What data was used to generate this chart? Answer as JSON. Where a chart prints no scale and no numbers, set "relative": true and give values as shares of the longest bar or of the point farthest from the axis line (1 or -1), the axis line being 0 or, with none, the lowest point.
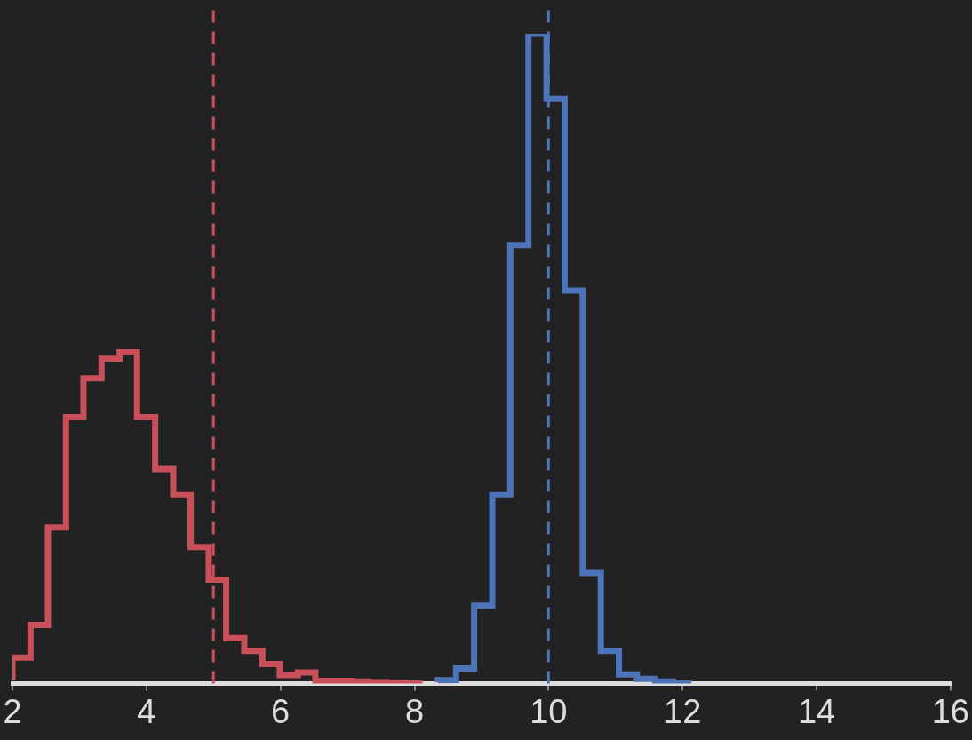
{
  "chart_data": {
    "type": "step",
    "relative": true,
    "xlim": [
      2,
      16
    ],
    "xticks": [
      2,
      4,
      6,
      8,
      10,
      12,
      14,
      16
    ],
    "grid": false,
    "legend": false,
    "marker": "none",
    "series": [
      {
        "color": "#c9505a",
        "x": [
          2.0,
          2.27,
          2.53,
          2.8,
          3.06,
          3.33,
          3.6,
          3.86,
          4.13,
          4.4,
          4.66,
          4.93,
          5.19,
          5.46,
          5.73,
          5.99,
          6.26,
          6.52,
          6.79,
          7.06,
          7.32,
          7.59,
          7.86,
          8.12
        ],
        "values": [
          0.005,
          0.04,
          0.09,
          0.24,
          0.41,
          0.47,
          0.5,
          0.51,
          0.41,
          0.33,
          0.29,
          0.21,
          0.16,
          0.07,
          0.05,
          0.03,
          0.013,
          0.017,
          0.004,
          0.004,
          0.003,
          0.002,
          0.001,
          0
        ]
      },
      {
        "color": "#4d74b8",
        "x": [
          8.35,
          8.62,
          8.89,
          9.16,
          9.43,
          9.7,
          9.97,
          10.24,
          10.51,
          10.78,
          11.05,
          11.32,
          11.59,
          11.86,
          12.13
        ],
        "values": [
          0.002,
          0.005,
          0.023,
          0.12,
          0.29,
          0.675,
          1.0,
          0.9,
          0.605,
          0.17,
          0.05,
          0.014,
          0.007,
          0.003,
          0
        ]
      }
    ],
    "ref_lines": [
      {
        "axis": "x",
        "value": 5,
        "color": "#c9505a",
        "line_style": "dashed"
      },
      {
        "axis": "x",
        "value": 10,
        "color": "#4d74b8",
        "line_style": "dashed"
      }
    ]
  }
}
